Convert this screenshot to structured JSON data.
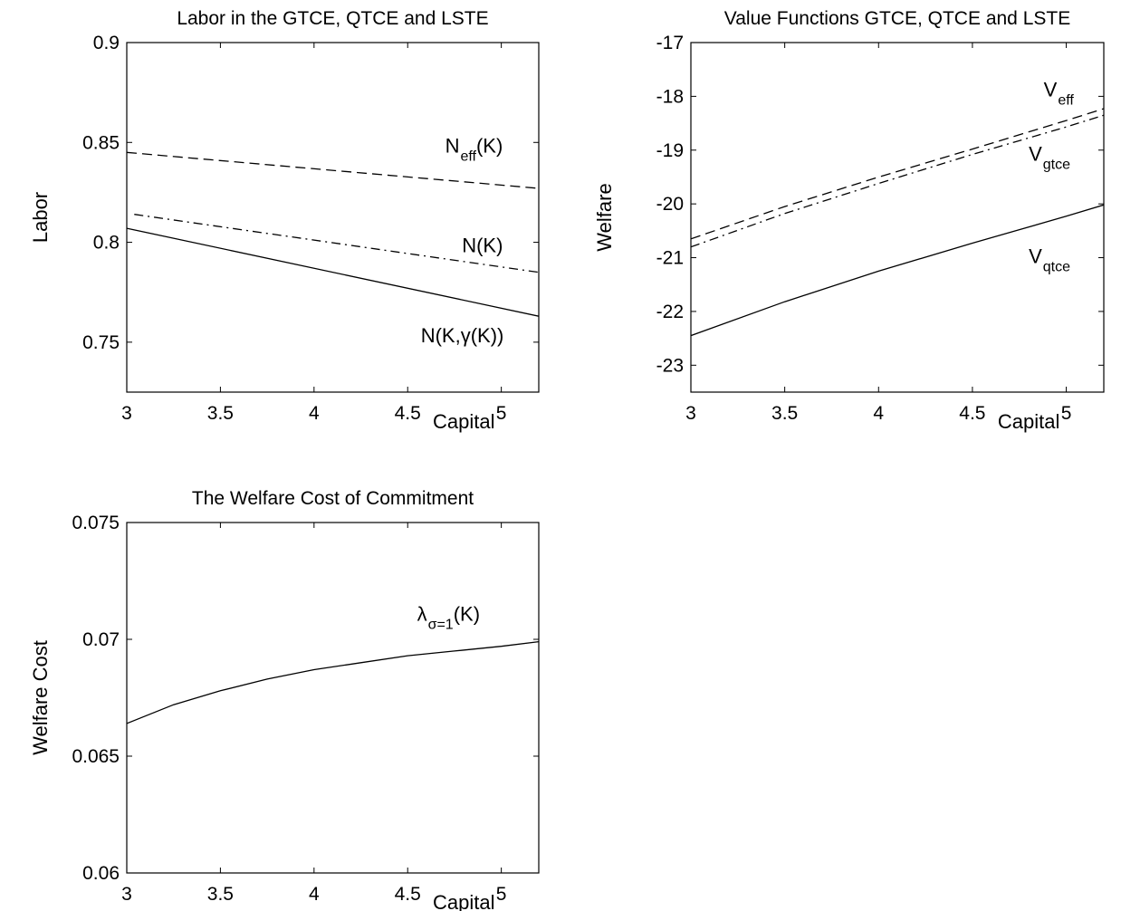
{
  "chart_data": [
    {
      "type": "line",
      "title": "Labor in the GTCE, QTCE and LSTE",
      "xlabel": "Capital",
      "ylabel": "Labor",
      "xlim": [
        3,
        5.2
      ],
      "ylim": [
        0.725,
        0.9
      ],
      "xticks": [
        3,
        3.5,
        4,
        4.5,
        5
      ],
      "xtick_labels": [
        "3",
        "3.5",
        "4",
        "4.5",
        "5"
      ],
      "yticks": [
        0.75,
        0.8,
        0.85,
        0.9
      ],
      "ytick_labels": [
        "0.75",
        "0.8",
        "0.85",
        "0.9"
      ],
      "grid": false,
      "series": [
        {
          "style": "dashed",
          "x": [
            3,
            5.2
          ],
          "y": [
            0.845,
            0.827
          ]
        },
        {
          "style": "dashdot",
          "x": [
            3.04,
            5.2
          ],
          "y": [
            0.814,
            0.785
          ]
        },
        {
          "style": "solid",
          "x": [
            3,
            5.2
          ],
          "y": [
            0.807,
            0.763
          ]
        }
      ],
      "annotations": [
        {
          "text": "N",
          "sub": "eff",
          "post": "(K)",
          "x": 4.7,
          "y": 0.845
        },
        {
          "text": "N(K)",
          "x": 4.79,
          "y": 0.795
        },
        {
          "text": "N(K,γ(K))",
          "x": 4.57,
          "y": 0.75
        }
      ]
    },
    {
      "type": "line",
      "title": "Value Functions GTCE, QTCE and LSTE",
      "xlabel": "Capital",
      "ylabel": "Welfare",
      "xlim": [
        3,
        5.2
      ],
      "ylim": [
        -23.5,
        -17
      ],
      "xticks": [
        3,
        3.5,
        4,
        4.5,
        5
      ],
      "xtick_labels": [
        "3",
        "3.5",
        "4",
        "4.5",
        "5"
      ],
      "yticks": [
        -23,
        -22,
        -21,
        -20,
        -19,
        -18,
        -17
      ],
      "ytick_labels": [
        "-23",
        "-22",
        "-21",
        "-20",
        "-19",
        "-18",
        "-17"
      ],
      "grid": false,
      "series": [
        {
          "style": "dashed",
          "x": [
            3,
            3.5,
            4,
            4.5,
            5,
            5.2
          ],
          "y": [
            -20.65,
            -20.05,
            -19.5,
            -18.98,
            -18.45,
            -18.23
          ]
        },
        {
          "style": "dashdot",
          "x": [
            3,
            3.5,
            4,
            4.5,
            5,
            5.2
          ],
          "y": [
            -20.8,
            -20.18,
            -19.62,
            -19.08,
            -18.57,
            -18.35
          ]
        },
        {
          "style": "solid",
          "x": [
            3,
            3.5,
            4,
            4.5,
            5,
            5.2
          ],
          "y": [
            -22.45,
            -21.82,
            -21.25,
            -20.73,
            -20.23,
            -20.02
          ]
        }
      ],
      "annotations": [
        {
          "text": "V",
          "sub": "eff",
          "post": "",
          "x": 4.88,
          "y": -18.0
        },
        {
          "text": "V",
          "sub": "gtce",
          "post": "",
          "x": 4.8,
          "y": -19.2
        },
        {
          "text": "V",
          "sub": "qtce",
          "post": "",
          "x": 4.8,
          "y": -21.1
        }
      ]
    },
    {
      "type": "line",
      "title": "The Welfare Cost of Commitment",
      "xlabel": "Capital",
      "ylabel": "Welfare Cost",
      "xlim": [
        3,
        5.2
      ],
      "ylim": [
        0.06,
        0.075
      ],
      "xticks": [
        3,
        3.5,
        4,
        4.5,
        5
      ],
      "xtick_labels": [
        "3",
        "3.5",
        "4",
        "4.5",
        "5"
      ],
      "yticks": [
        0.06,
        0.065,
        0.07,
        0.075
      ],
      "ytick_labels": [
        "0.06",
        "0.065",
        "0.07",
        "0.075"
      ],
      "grid": false,
      "series": [
        {
          "style": "solid",
          "x": [
            3,
            3.25,
            3.5,
            3.75,
            4,
            4.25,
            4.5,
            4.75,
            5,
            5.2
          ],
          "y": [
            0.0664,
            0.0672,
            0.0678,
            0.0683,
            0.0687,
            0.069,
            0.0693,
            0.0695,
            0.0697,
            0.0699
          ]
        }
      ],
      "annotations": [
        {
          "text": "λ",
          "sub": "σ=1",
          "post": "(K)",
          "x": 4.55,
          "y": 0.0708
        }
      ]
    }
  ]
}
